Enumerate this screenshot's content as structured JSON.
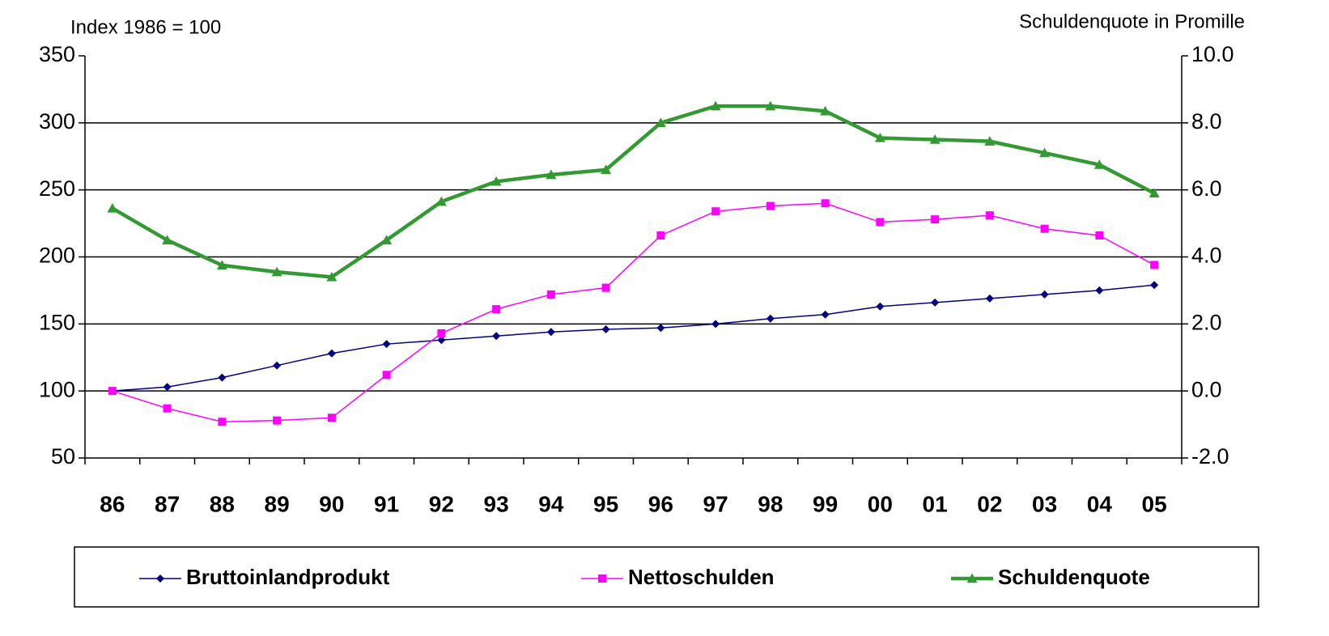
{
  "chart_data": {
    "type": "line",
    "y_label": "Index 1986 = 100",
    "y2_label": "Schuldenquote in Promille",
    "categories": [
      "86",
      "87",
      "88",
      "89",
      "90",
      "91",
      "92",
      "93",
      "94",
      "95",
      "96",
      "97",
      "98",
      "99",
      "00",
      "01",
      "02",
      "03",
      "04",
      "05"
    ],
    "series": [
      {
        "name": "Bruttoinlandprodukt",
        "color": "#000080",
        "marker": "diamond",
        "values": [
          100,
          103,
          110,
          119,
          128,
          135,
          138,
          141,
          144,
          146,
          147,
          150,
          154,
          157,
          163,
          166,
          169,
          172,
          175,
          179
        ]
      },
      {
        "name": "Nettoschulden",
        "color": "#ff00ff",
        "marker": "square",
        "values": [
          100,
          87,
          77,
          78,
          80,
          112,
          143,
          161,
          172,
          177,
          216,
          234,
          238,
          240,
          226,
          228,
          231,
          221,
          216,
          194
        ]
      },
      {
        "name": "Schuldenquote",
        "color": "#339933",
        "marker": "triangle",
        "axis": "y2",
        "values": [
          5.45,
          4.5,
          3.75,
          3.55,
          3.4,
          4.5,
          5.65,
          6.25,
          6.45,
          6.6,
          8.0,
          8.5,
          8.5,
          8.35,
          7.55,
          7.5,
          7.45,
          7.1,
          6.75,
          5.9
        ]
      }
    ],
    "ylim": [
      50,
      350
    ],
    "yticks": [
      50,
      100,
      150,
      200,
      250,
      300,
      350
    ],
    "y2lim": [
      -2,
      10
    ],
    "y2ticks": [
      {
        "value": -2,
        "label": "-2.0"
      },
      {
        "value": 0,
        "label": "0.0"
      },
      {
        "value": 2,
        "label": "2.0"
      },
      {
        "value": 4,
        "label": "4.0"
      },
      {
        "value": 6,
        "label": "6.0"
      },
      {
        "value": 8,
        "label": "8.0"
      },
      {
        "value": 10,
        "label": "10.0"
      }
    ],
    "grid": true,
    "legend": "bottom"
  }
}
